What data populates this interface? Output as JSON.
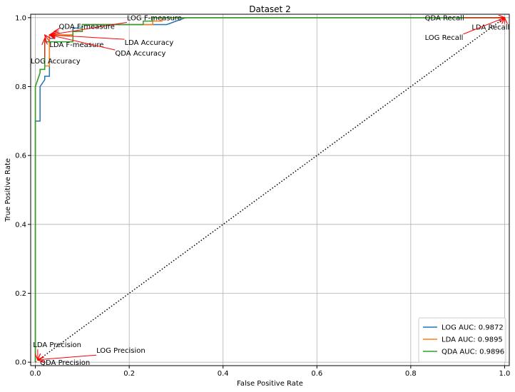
{
  "chart_data": {
    "type": "line",
    "title": "Dataset 2",
    "xlabel": "False Positive Rate",
    "ylabel": "True Positive Rate",
    "xlim": [
      -0.01,
      1.01
    ],
    "ylim": [
      -0.01,
      1.01
    ],
    "xticks": [
      0.0,
      0.2,
      0.4,
      0.6,
      0.8,
      1.0
    ],
    "yticks": [
      0.0,
      0.2,
      0.4,
      0.6,
      0.8,
      1.0
    ],
    "xtick_labels": [
      "0.0",
      "0.2",
      "0.4",
      "0.6",
      "0.8",
      "1.0"
    ],
    "ytick_labels": [
      "0.0",
      "0.2",
      "0.4",
      "0.6",
      "0.8",
      "1.0"
    ],
    "grid": true,
    "legend_position": "lower-right",
    "series": [
      {
        "name": "LOG AUC: 0.9872",
        "color": "#1f77b4",
        "x": [
          0,
          0,
          0.01,
          0.01,
          0.02,
          0.02,
          0.03,
          0.03,
          0.04,
          0.04,
          0.08,
          0.08,
          0.1,
          0.1,
          0.28,
          0.28,
          0.32,
          0.32,
          1.0
        ],
        "y": [
          0,
          0.7,
          0.7,
          0.8,
          0.82,
          0.83,
          0.83,
          0.94,
          0.94,
          0.95,
          0.95,
          0.97,
          0.97,
          0.98,
          0.98,
          0.98,
          1.0,
          1.0,
          1.0
        ]
      },
      {
        "name": "LDA AUC: 0.9895",
        "color": "#ff7f0e",
        "x": [
          0,
          0,
          0.01,
          0.01,
          0.02,
          0.02,
          0.03,
          0.03,
          0.08,
          0.08,
          0.1,
          0.1,
          0.25,
          0.25,
          0.27,
          0.27,
          1.0
        ],
        "y": [
          0,
          0.8,
          0.84,
          0.85,
          0.85,
          0.86,
          0.86,
          0.95,
          0.95,
          0.96,
          0.96,
          0.98,
          0.98,
          0.99,
          0.99,
          1.0,
          1.0
        ]
      },
      {
        "name": "QDA AUC: 0.9896",
        "color": "#2ca02c",
        "x": [
          0,
          0,
          0.01,
          0.01,
          0.02,
          0.02,
          0.08,
          0.08,
          0.1,
          0.1,
          0.23,
          0.23,
          0.25,
          0.25,
          1.0
        ],
        "y": [
          0,
          0.8,
          0.84,
          0.85,
          0.85,
          0.93,
          0.93,
          0.96,
          0.96,
          0.98,
          0.98,
          0.99,
          0.99,
          1.0,
          1.0
        ]
      }
    ],
    "diagonal": {
      "x": [
        0,
        1
      ],
      "y": [
        0,
        1
      ],
      "style": "dotted",
      "color": "#000000"
    },
    "annotations": [
      {
        "text": "LOG F-measure",
        "point": [
          0.03,
          0.95
        ],
        "text_pos": [
          0.195,
          1.0
        ]
      },
      {
        "text": "QDA F-measure",
        "point": [
          0.04,
          0.96
        ],
        "text_pos": [
          0.05,
          0.975
        ]
      },
      {
        "text": "LDA F-measure",
        "point": [
          0.02,
          0.95
        ],
        "text_pos": [
          0.03,
          0.922
        ]
      },
      {
        "text": "LDA Accuracy",
        "point": [
          0.03,
          0.95
        ],
        "text_pos": [
          0.19,
          0.928
        ]
      },
      {
        "text": "QDA Accuracy",
        "point": [
          0.03,
          0.95
        ],
        "text_pos": [
          0.17,
          0.897
        ]
      },
      {
        "text": "LOG Accuracy",
        "point": [
          0.02,
          0.94
        ],
        "text_pos": [
          -0.01,
          0.875
        ]
      },
      {
        "text": "QDA Recall",
        "point": [
          1.0,
          1.0
        ],
        "text_pos": [
          0.83,
          1.0
        ]
      },
      {
        "text": "LDA Recall",
        "point": [
          1.0,
          1.0
        ],
        "text_pos": [
          0.93,
          0.973
        ]
      },
      {
        "text": "LOG Recall",
        "point": [
          1.0,
          1.0
        ],
        "text_pos": [
          0.83,
          0.943
        ]
      },
      {
        "text": "LDA Precision",
        "point": [
          0.005,
          0.007
        ],
        "text_pos": [
          -0.005,
          0.051
        ]
      },
      {
        "text": "LOG Precision",
        "point": [
          0.005,
          0.007
        ],
        "text_pos": [
          0.13,
          0.034
        ]
      },
      {
        "text": "QDA Precision",
        "point": [
          0.005,
          0.007
        ],
        "text_pos": [
          0.01,
          -0.001
        ]
      }
    ],
    "annotation_arrow_color": "#ff0000"
  }
}
